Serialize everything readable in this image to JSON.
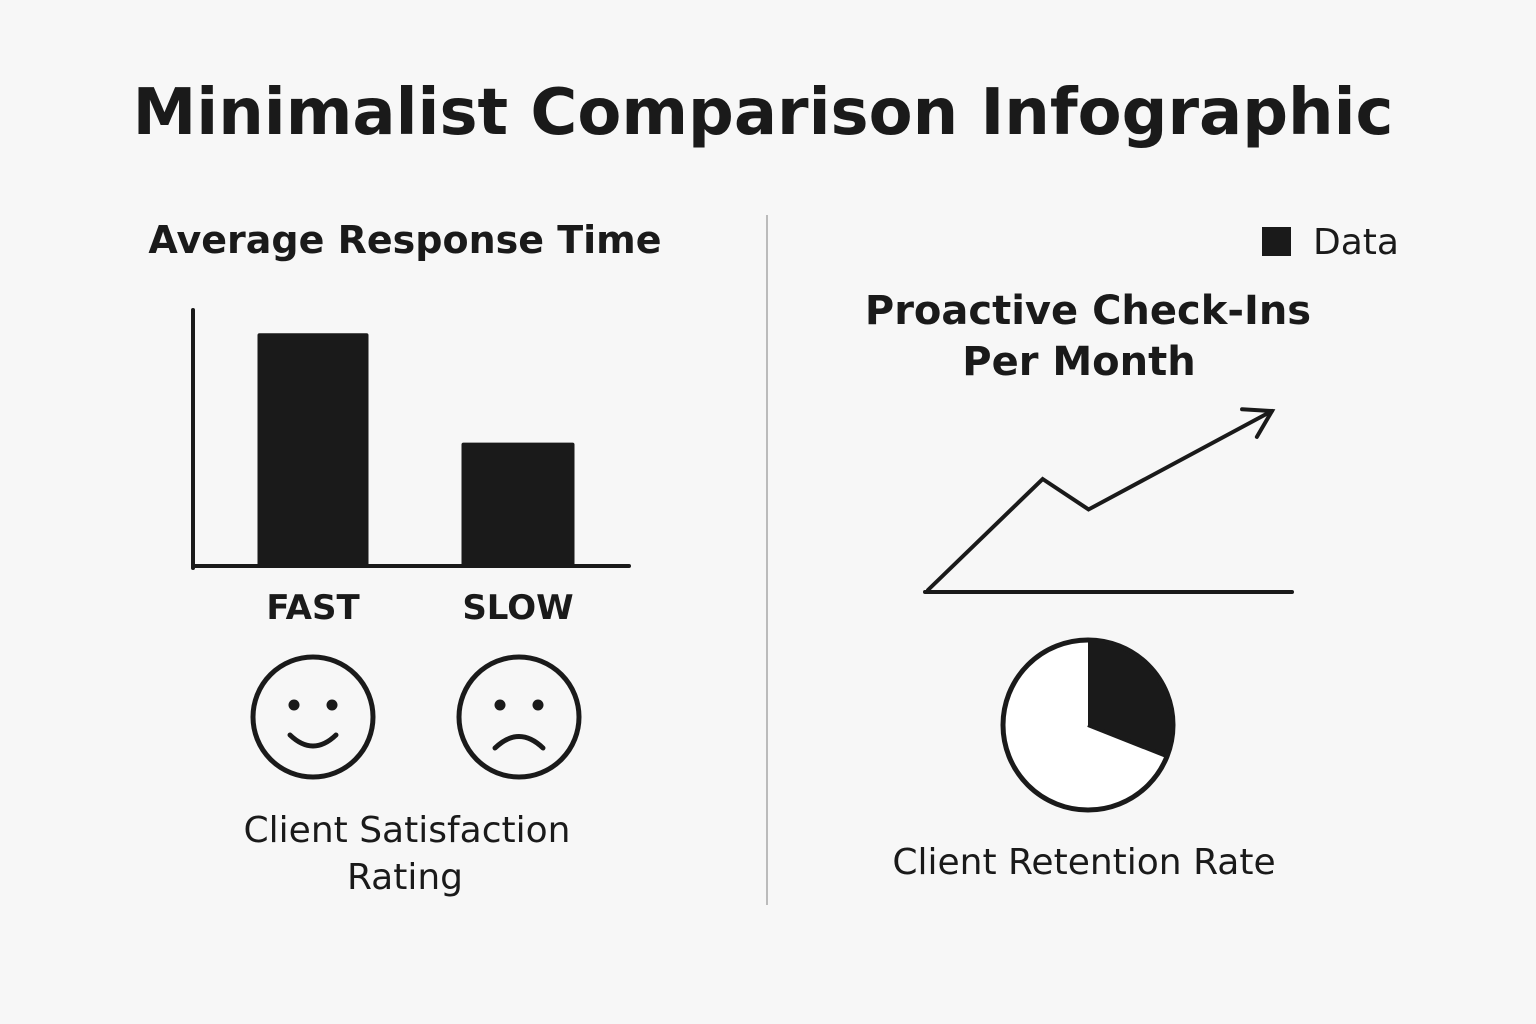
{
  "title": "Minimalist Comparison Infographic",
  "colors": {
    "ink": "#1a1a1a",
    "background": "#f7f7f7",
    "divider": "#bbbbbb"
  },
  "chart_data": [
    {
      "type": "bar",
      "title": "Average Response Time",
      "categories": [
        "FAST",
        "SLOW"
      ],
      "values": [
        1.0,
        0.53
      ],
      "ylim": [
        0,
        1.1
      ],
      "xlabel": "",
      "ylabel": "",
      "grid": false,
      "tick_labels_y": false
    },
    {
      "type": "icons",
      "caption": [
        "Client Satisfaction",
        "Rating"
      ],
      "faces": [
        {
          "category": "FAST",
          "icon": "smiley-face-icon"
        },
        {
          "category": "SLOW",
          "icon": "frowning-face-icon"
        }
      ]
    },
    {
      "type": "line",
      "title": [
        "Proactive Check-Ins",
        "Per Month"
      ],
      "legend": {
        "label": "Data",
        "placement": "top-right"
      },
      "x": [
        0,
        1,
        1.4,
        3
      ],
      "y": [
        0,
        0.62,
        0.45,
        1.0
      ],
      "ylim": [
        0,
        1.1
      ],
      "arrow_end": true,
      "icon": "upward-trend-arrow-icon"
    },
    {
      "type": "pie",
      "caption": "Client Retention Rate",
      "slices": [
        {
          "value": 0.31,
          "fill": "#1a1a1a"
        },
        {
          "value": 0.69,
          "fill": "#ffffff"
        }
      ],
      "start_angle_deg": 0
    }
  ]
}
